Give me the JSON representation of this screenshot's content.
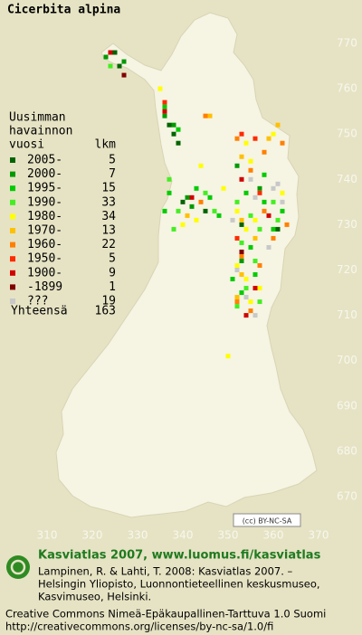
{
  "title": "Cicerbita alpina",
  "axes": {
    "xticks": [
      310,
      320,
      330,
      340,
      350,
      360,
      370
    ],
    "yticks": [
      770,
      760,
      750,
      740,
      730,
      720,
      710,
      700,
      690,
      680,
      670
    ]
  },
  "legend": {
    "header": [
      "Uusimman",
      "havainnon",
      "vuosi"
    ],
    "count_header": "lkm",
    "items": [
      {
        "label": "2005-",
        "count": 5,
        "color": "#006400",
        "squares": [
          [
            325,
            768
          ],
          [
            326,
            765
          ],
          [
            337,
            752
          ],
          [
            338,
            750
          ],
          [
            339,
            748
          ],
          [
            340,
            735
          ],
          [
            345,
            733
          ],
          [
            353,
            730
          ],
          [
            361,
            729
          ]
        ]
      },
      {
        "label": "2000-",
        "count": 7,
        "color": "#009a00",
        "squares": [
          [
            323,
            767
          ],
          [
            327,
            766
          ],
          [
            336,
            754
          ],
          [
            338,
            752
          ],
          [
            341,
            736
          ],
          [
            342,
            734
          ],
          [
            352,
            743
          ],
          [
            357,
            738
          ],
          [
            353,
            722
          ]
        ]
      },
      {
        "label": "1995-",
        "count": 15,
        "color": "#00cc00",
        "squares": [
          [
            336,
            756
          ],
          [
            339,
            751
          ],
          [
            337,
            737
          ],
          [
            343,
            738
          ],
          [
            346,
            736
          ],
          [
            348,
            732
          ],
          [
            354,
            737
          ],
          [
            358,
            735
          ],
          [
            362,
            733
          ],
          [
            360,
            729
          ],
          [
            355,
            725
          ],
          [
            356,
            719
          ],
          [
            353,
            715
          ],
          [
            358,
            741
          ],
          [
            336,
            733
          ],
          [
            351,
            718
          ]
        ]
      },
      {
        "label": "1990-",
        "count": 33,
        "color": "#44ee22",
        "squares": [
          [
            324,
            765
          ],
          [
            337,
            740
          ],
          [
            339,
            733
          ],
          [
            345,
            737
          ],
          [
            352,
            735
          ],
          [
            355,
            732
          ],
          [
            357,
            729
          ],
          [
            361,
            731
          ],
          [
            353,
            726
          ],
          [
            356,
            722
          ],
          [
            354,
            716
          ],
          [
            352,
            712
          ],
          [
            357,
            713
          ],
          [
            347,
            733
          ],
          [
            360,
            735
          ],
          [
            338,
            729
          ]
        ]
      },
      {
        "label": "1980-",
        "count": 34,
        "color": "#ffff00",
        "squares": [
          [
            335,
            760
          ],
          [
            344,
            743
          ],
          [
            354,
            748
          ],
          [
            355,
            744
          ],
          [
            360,
            750
          ],
          [
            352,
            733
          ],
          [
            354,
            729
          ],
          [
            356,
            731
          ],
          [
            352,
            721
          ],
          [
            354,
            718
          ],
          [
            355,
            713
          ],
          [
            357,
            716
          ],
          [
            340,
            730
          ],
          [
            343,
            731
          ],
          [
            350,
            701
          ],
          [
            362,
            737
          ],
          [
            349,
            738
          ]
        ]
      },
      {
        "label": "1970-",
        "count": 13,
        "color": "#ffc000",
        "squares": [
          [
            346,
            754
          ],
          [
            353,
            745
          ],
          [
            359,
            749
          ],
          [
            361,
            752
          ],
          [
            353,
            731
          ],
          [
            356,
            727
          ],
          [
            352,
            714
          ],
          [
            353,
            719
          ],
          [
            341,
            732
          ]
        ]
      },
      {
        "label": "1960-",
        "count": 22,
        "color": "#ff8000",
        "squares": [
          [
            345,
            754
          ],
          [
            352,
            749
          ],
          [
            358,
            746
          ],
          [
            362,
            748
          ],
          [
            355,
            742
          ],
          [
            358,
            733
          ],
          [
            360,
            727
          ],
          [
            352,
            713
          ],
          [
            355,
            711
          ],
          [
            353,
            723
          ],
          [
            357,
            721
          ],
          [
            344,
            735
          ],
          [
            363,
            730
          ]
        ]
      },
      {
        "label": "1950-",
        "count": 5,
        "color": "#ff2a00",
        "squares": [
          [
            336,
            757
          ],
          [
            353,
            750
          ],
          [
            356,
            749
          ],
          [
            357,
            737
          ],
          [
            352,
            727
          ]
        ]
      },
      {
        "label": "1900-",
        "count": 9,
        "color": "#d00000",
        "squares": [
          [
            336,
            755
          ],
          [
            324,
            768
          ],
          [
            353,
            740
          ],
          [
            359,
            732
          ],
          [
            354,
            710
          ],
          [
            356,
            716
          ],
          [
            342,
            736
          ]
        ]
      },
      {
        "label": "-1899",
        "count": 1,
        "color": "#800000",
        "squares": [
          [
            327,
            763
          ],
          [
            353,
            724
          ]
        ]
      },
      {
        "label": "???",
        "count": 19,
        "color": "#c8c8c8",
        "squares": [
          [
            355,
            740
          ],
          [
            356,
            736
          ],
          [
            360,
            738
          ],
          [
            351,
            731
          ],
          [
            352,
            720
          ],
          [
            354,
            714
          ],
          [
            356,
            710
          ],
          [
            359,
            725
          ],
          [
            361,
            739
          ],
          [
            362,
            735
          ]
        ]
      }
    ],
    "total_label": "Yhteensä",
    "total": 163
  },
  "badge": "(cc) BY-NC-SA",
  "footer": {
    "heading": "Kasviatlas 2007, www.luomus.fi/kasviatlas",
    "citation": [
      "Lampinen, R. & Lahti, T. 2008: Kasviatlas 2007. –",
      "Helsingin Yliopisto, Luonnontieteellinen keskusmuseo,",
      "Kasvimuseo, Helsinki."
    ],
    "license": [
      "Creative Commons Nimeä-Epäkaupallinen-Tarttuva 1.0 Suomi",
      "http://creativecommons.org/licenses/by-nc-sa/1.0/fi"
    ]
  }
}
